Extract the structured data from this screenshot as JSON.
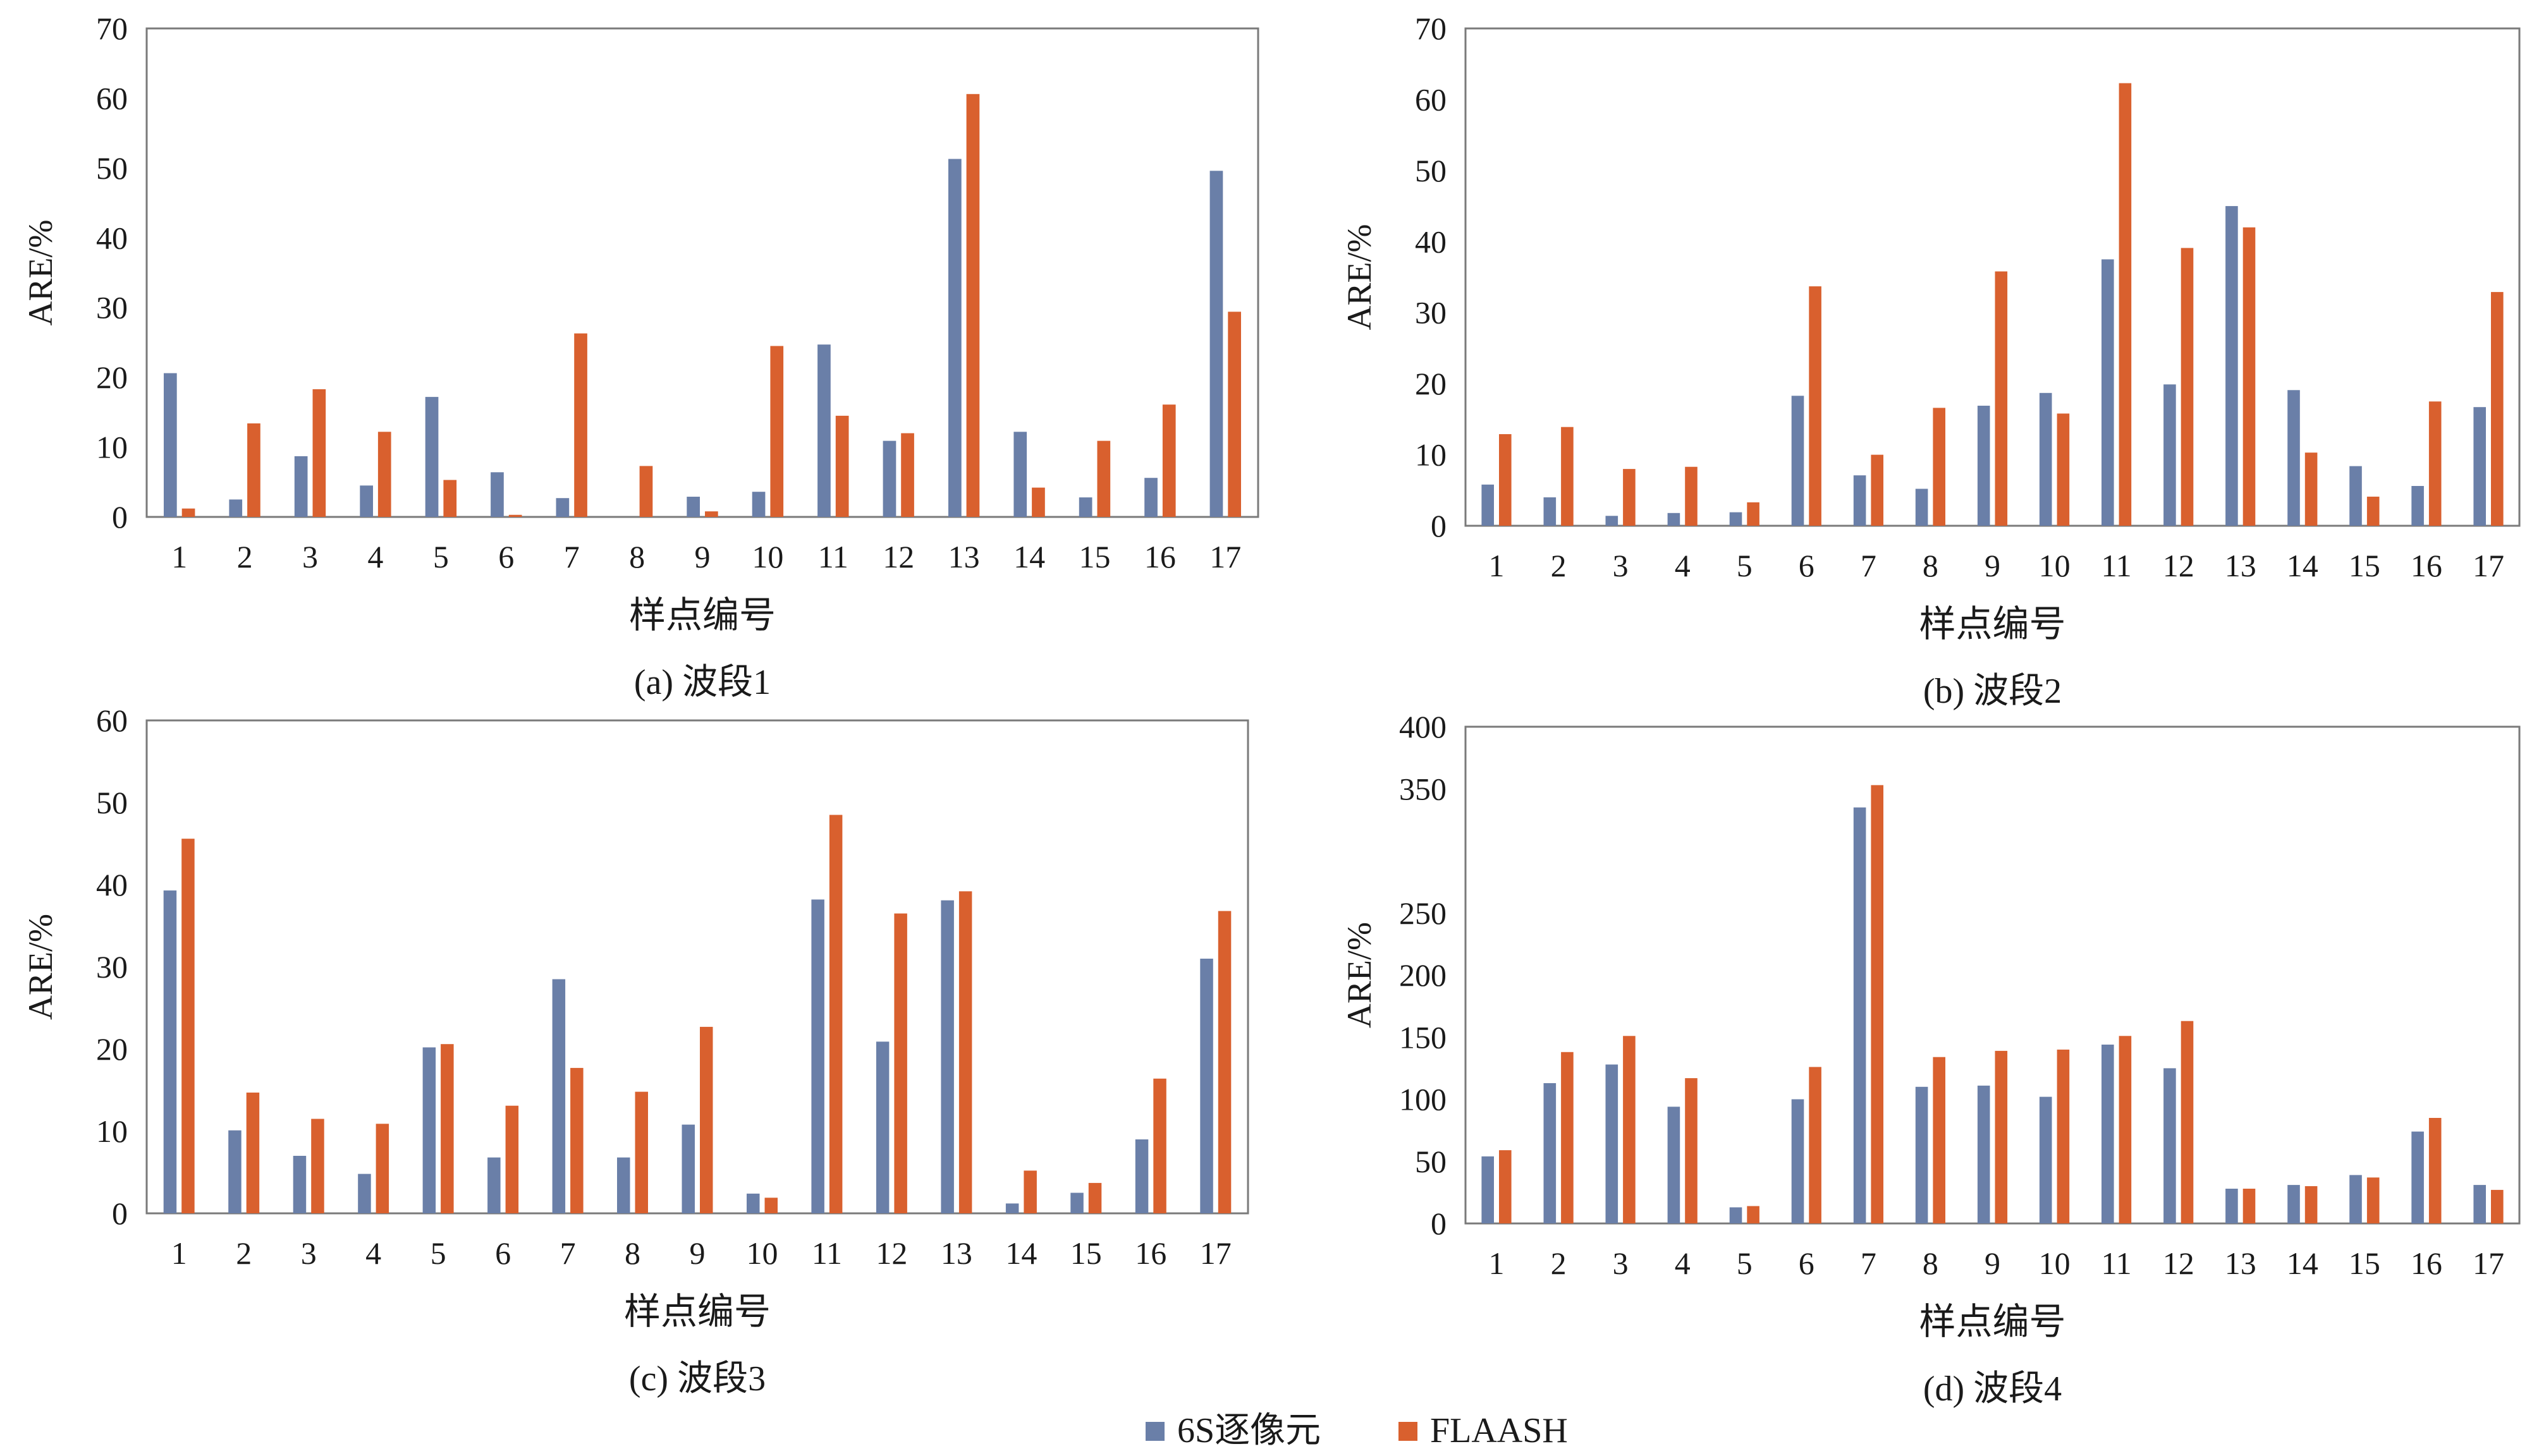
{
  "colors": {
    "series1": "#6a7fa8",
    "series2": "#d9602e",
    "frame": "#7a7a7a"
  },
  "legend": {
    "items": [
      "6S逐像元",
      "FLAASH"
    ]
  },
  "chart_data": [
    {
      "type": "bar",
      "caption": "(a) 波段1",
      "xlabel": "样点编号",
      "ylabel": "ARE/%",
      "ylim": [
        0,
        70
      ],
      "yticks": [
        "0",
        "10",
        "20",
        "30",
        "40",
        "50",
        "60",
        "70"
      ],
      "categories": [
        "1",
        "2",
        "3",
        "4",
        "5",
        "6",
        "7",
        "8",
        "9",
        "10",
        "11",
        "12",
        "13",
        "14",
        "15",
        "16",
        "17"
      ],
      "legend_position": "bottom",
      "series": [
        {
          "name": "6S逐像元",
          "values": [
            20.6,
            2.5,
            8.7,
            4.5,
            17.2,
            6.4,
            2.7,
            0,
            2.9,
            3.6,
            24.7,
            10.9,
            51.3,
            12.2,
            2.8,
            5.6,
            49.6
          ]
        },
        {
          "name": "FLAASH",
          "values": [
            1.2,
            13.4,
            18.3,
            12.2,
            5.3,
            0.3,
            26.3,
            7.3,
            0.8,
            24.5,
            14.5,
            12.0,
            60.6,
            4.2,
            10.9,
            16.1,
            29.4
          ]
        }
      ]
    },
    {
      "type": "bar",
      "caption": "(b) 波段2",
      "xlabel": "样点编号",
      "ylabel": "ARE/%",
      "ylim": [
        0,
        70
      ],
      "yticks": [
        "0",
        "10",
        "20",
        "30",
        "40",
        "50",
        "60",
        "70"
      ],
      "categories": [
        "1",
        "2",
        "3",
        "4",
        "5",
        "6",
        "7",
        "8",
        "9",
        "10",
        "11",
        "12",
        "13",
        "14",
        "15",
        "16",
        "17"
      ],
      "legend_position": "bottom",
      "series": [
        {
          "name": "6S逐像元",
          "values": [
            5.8,
            4.0,
            1.4,
            1.8,
            1.9,
            18.3,
            7.1,
            5.2,
            16.9,
            18.7,
            37.5,
            19.9,
            45.0,
            19.1,
            8.4,
            5.6,
            16.7
          ]
        },
        {
          "name": "FLAASH",
          "values": [
            12.9,
            13.9,
            8.0,
            8.3,
            3.3,
            33.7,
            10.0,
            16.6,
            35.8,
            15.8,
            62.3,
            39.1,
            42.0,
            10.3,
            4.1,
            17.5,
            32.9
          ]
        }
      ]
    },
    {
      "type": "bar",
      "caption": "(c) 波段3",
      "xlabel": "样点编号",
      "ylabel": "ARE/%",
      "ylim": [
        0,
        60
      ],
      "yticks": [
        "0",
        "10",
        "20",
        "30",
        "40",
        "50",
        "60"
      ],
      "categories": [
        "1",
        "2",
        "3",
        "4",
        "5",
        "6",
        "7",
        "8",
        "9",
        "10",
        "11",
        "12",
        "13",
        "14",
        "15",
        "16",
        "17"
      ],
      "legend_position": "bottom",
      "series": [
        {
          "name": "6S逐像元",
          "values": [
            39.3,
            10.1,
            7.0,
            4.8,
            20.2,
            6.8,
            28.5,
            6.8,
            10.8,
            2.4,
            38.2,
            20.9,
            38.1,
            1.2,
            2.5,
            9.0,
            31.0
          ]
        },
        {
          "name": "FLAASH",
          "values": [
            45.6,
            14.7,
            11.5,
            10.9,
            20.6,
            13.1,
            17.7,
            14.8,
            22.7,
            1.9,
            48.5,
            36.5,
            39.2,
            5.2,
            3.7,
            16.4,
            36.8
          ]
        }
      ]
    },
    {
      "type": "bar",
      "caption": "(d) 波段4",
      "xlabel": "样点编号",
      "ylabel": "ARE/%",
      "ylim": [
        0,
        400
      ],
      "yticks": [
        "0",
        "50",
        "100",
        "150",
        "200",
        "250",
        "350",
        "400"
      ],
      "categories": [
        "1",
        "2",
        "3",
        "4",
        "5",
        "6",
        "7",
        "8",
        "9",
        "10",
        "11",
        "12",
        "13",
        "14",
        "15",
        "16",
        "17"
      ],
      "legend_position": "bottom",
      "series": [
        {
          "name": "6S逐像元",
          "values": [
            54,
            113,
            128,
            94,
            13,
            100,
            335,
            110,
            111,
            102,
            144,
            125,
            28,
            31,
            39,
            74,
            31
          ]
        },
        {
          "name": "FLAASH",
          "values": [
            59,
            138,
            151,
            117,
            14,
            126,
            353,
            134,
            139,
            140,
            151,
            163,
            28,
            30,
            37,
            85,
            27
          ]
        }
      ]
    }
  ]
}
